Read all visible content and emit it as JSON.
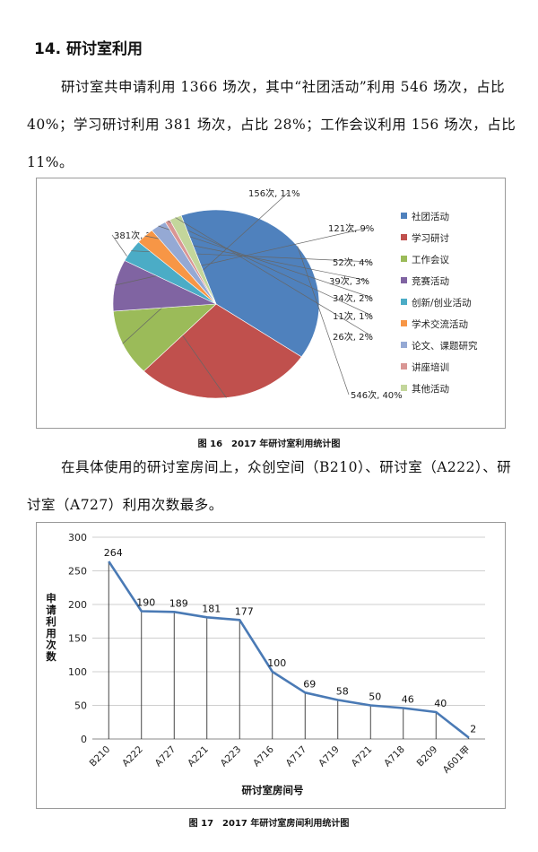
{
  "section": {
    "heading": "14. 研讨室利用"
  },
  "paragraphs": {
    "p1": "研讨室共申请利用 1366 场次，其中“社团活动”利用 546 场次，占比 40%；学习研讨利用 381 场次，占比 28%；工作会议利用 156 场次，占比 11%。",
    "p2": "在具体使用的研讨室房间上，众创空间（B210）、研讨室（A222）、研讨室（A727）利用次数最多。"
  },
  "captions": {
    "fig16": "图 16　2017 年研讨室利用统计图",
    "fig17": "图 17　2017 年研讨室房间利用统计图"
  },
  "chart_data": [
    {
      "type": "pie",
      "title": "",
      "slices": [
        {
          "name": "社团活动",
          "value": 546,
          "label": "546次, 40%",
          "color": "#4f81bd"
        },
        {
          "name": "学习研讨",
          "value": 381,
          "label": "381次, 28%",
          "color": "#c0504d"
        },
        {
          "name": "工作会议",
          "value": 156,
          "label": "156次, 11%",
          "color": "#9bbb59"
        },
        {
          "name": "竞赛活动",
          "value": 121,
          "label": "121次, 9%",
          "color": "#8064a2"
        },
        {
          "name": "创新/创业活动",
          "value": 52,
          "label": "52次, 4%",
          "color": "#4bacc6"
        },
        {
          "name": "学术交流活动",
          "value": 39,
          "label": "39次, 3%",
          "color": "#f79646"
        },
        {
          "name": "论文、课题研究",
          "value": 34,
          "label": "34次, 2%",
          "color": "#95a9d4"
        },
        {
          "name": "讲座培训",
          "value": 11,
          "label": "11次, 1%",
          "color": "#d99694"
        },
        {
          "name": "其他活动",
          "value": 26,
          "label": "26次, 2%",
          "color": "#c3d69b"
        }
      ],
      "legend_position": "right"
    },
    {
      "type": "line",
      "title": "",
      "xlabel": "研讨室房间号",
      "ylabel": "申请利用次数",
      "ylim": [
        0,
        300
      ],
      "yticks": [
        "0",
        "50",
        "100",
        "150",
        "200",
        "250",
        "300"
      ],
      "categories": [
        "B210",
        "A222",
        "A727",
        "A221",
        "A223",
        "A716",
        "A717",
        "A719",
        "A721",
        "A718",
        "B209",
        "A601甲"
      ],
      "series": [
        {
          "values": [
            264,
            190,
            189,
            181,
            177,
            100,
            69,
            58,
            50,
            46,
            40,
            2
          ],
          "color": "#4a7ab5"
        }
      ],
      "grid": true,
      "data_labels": true,
      "drop_lines": true
    }
  ]
}
